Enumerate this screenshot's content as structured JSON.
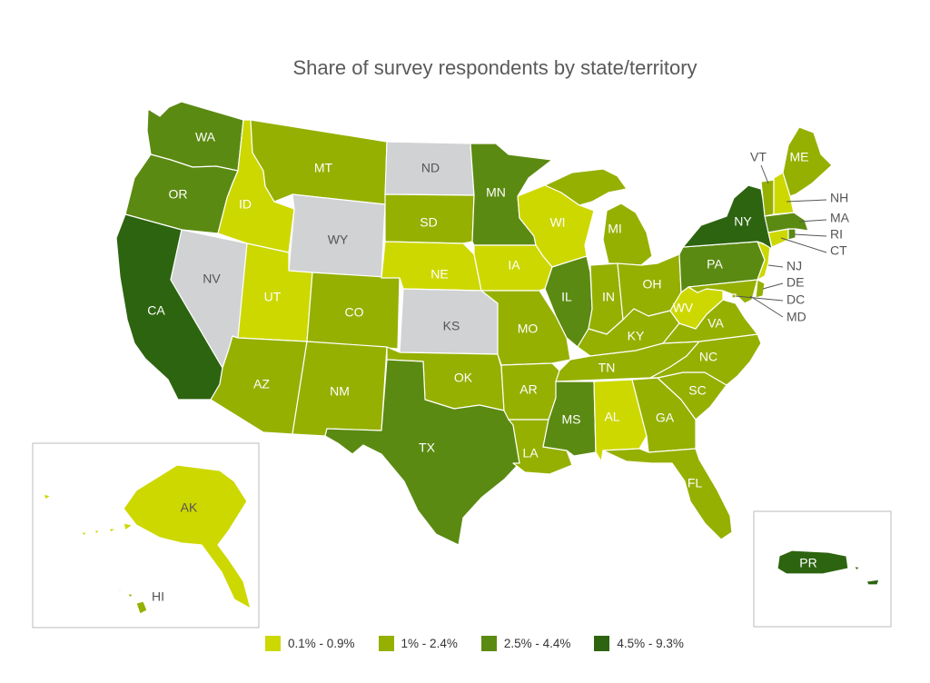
{
  "title": "Share of survey respondents by state/territory",
  "colors": {
    "b1": "#cdd800",
    "b2": "#95b000",
    "b3": "#5b8a12",
    "b4": "#2d6410",
    "nodata": "#d0d2d3"
  },
  "legend": [
    {
      "label": "0.1% - 0.9%",
      "color": "#cdd800"
    },
    {
      "label": "1% - 2.4%",
      "color": "#95b000"
    },
    {
      "label": "2.5% - 4.4%",
      "color": "#5b8a12"
    },
    {
      "label": "4.5% - 9.3%",
      "color": "#2d6410"
    }
  ],
  "states": {
    "WA": {
      "label": "WA",
      "bin": "2.5% - 4.4%"
    },
    "OR": {
      "label": "OR",
      "bin": "2.5% - 4.4%"
    },
    "CA": {
      "label": "CA",
      "bin": "4.5% - 9.3%"
    },
    "NV": {
      "label": "NV",
      "bin": "no data"
    },
    "ID": {
      "label": "ID",
      "bin": "0.1% - 0.9%"
    },
    "MT": {
      "label": "MT",
      "bin": "1% - 2.4%"
    },
    "WY": {
      "label": "WY",
      "bin": "no data"
    },
    "UT": {
      "label": "UT",
      "bin": "0.1% - 0.9%"
    },
    "AZ": {
      "label": "AZ",
      "bin": "1% - 2.4%"
    },
    "CO": {
      "label": "CO",
      "bin": "1% - 2.4%"
    },
    "NM": {
      "label": "NM",
      "bin": "1% - 2.4%"
    },
    "ND": {
      "label": "ND",
      "bin": "no data"
    },
    "SD": {
      "label": "SD",
      "bin": "1% - 2.4%"
    },
    "NE": {
      "label": "NE",
      "bin": "0.1% - 0.9%"
    },
    "KS": {
      "label": "KS",
      "bin": "no data"
    },
    "OK": {
      "label": "OK",
      "bin": "1% - 2.4%"
    },
    "TX": {
      "label": "TX",
      "bin": "2.5% - 4.4%"
    },
    "MN": {
      "label": "MN",
      "bin": "2.5% - 4.4%"
    },
    "IA": {
      "label": "IA",
      "bin": "0.1% - 0.9%"
    },
    "MO": {
      "label": "MO",
      "bin": "1% - 2.4%"
    },
    "AR": {
      "label": "AR",
      "bin": "1% - 2.4%"
    },
    "LA": {
      "label": "LA",
      "bin": "1% - 2.4%"
    },
    "WI": {
      "label": "WI",
      "bin": "0.1% - 0.9%"
    },
    "IL": {
      "label": "IL",
      "bin": "2.5% - 4.4%"
    },
    "MI": {
      "label": "MI",
      "bin": "1% - 2.4%"
    },
    "IN": {
      "label": "IN",
      "bin": "1% - 2.4%"
    },
    "OH": {
      "label": "OH",
      "bin": "1% - 2.4%"
    },
    "KY": {
      "label": "KY",
      "bin": "1% - 2.4%"
    },
    "TN": {
      "label": "TN",
      "bin": "1% - 2.4%"
    },
    "MS": {
      "label": "MS",
      "bin": "2.5% - 4.4%"
    },
    "AL": {
      "label": "AL",
      "bin": "0.1% - 0.9%"
    },
    "GA": {
      "label": "GA",
      "bin": "1% - 2.4%"
    },
    "FL": {
      "label": "FL",
      "bin": "1% - 2.4%"
    },
    "SC": {
      "label": "SC",
      "bin": "1% - 2.4%"
    },
    "NC": {
      "label": "NC",
      "bin": "1% - 2.4%"
    },
    "VA": {
      "label": "VA",
      "bin": "1% - 2.4%"
    },
    "WV": {
      "label": "WV",
      "bin": "0.1% - 0.9%"
    },
    "PA": {
      "label": "PA",
      "bin": "2.5% - 4.4%"
    },
    "NY": {
      "label": "NY",
      "bin": "4.5% - 9.3%"
    },
    "VT": {
      "label": "VT",
      "bin": "1% - 2.4%"
    },
    "NH": {
      "label": "NH",
      "bin": "0.1% - 0.9%"
    },
    "ME": {
      "label": "ME",
      "bin": "1% - 2.4%"
    },
    "MA": {
      "label": "MA",
      "bin": "2.5% - 4.4%"
    },
    "RI": {
      "label": "RI",
      "bin": "2.5% - 4.4%"
    },
    "CT": {
      "label": "CT",
      "bin": "0.1% - 0.9%"
    },
    "NJ": {
      "label": "NJ",
      "bin": "0.1% - 0.9%"
    },
    "DE": {
      "label": "DE",
      "bin": "1% - 2.4%"
    },
    "DC": {
      "label": "DC",
      "bin": "1% - 2.4%"
    },
    "MD": {
      "label": "MD",
      "bin": "1% - 2.4%"
    },
    "AK": {
      "label": "AK",
      "bin": "0.1% - 0.9%"
    },
    "HI": {
      "label": "HI",
      "bin": "1% - 2.4%"
    },
    "PR": {
      "label": "PR",
      "bin": "4.5% - 9.3%"
    }
  }
}
